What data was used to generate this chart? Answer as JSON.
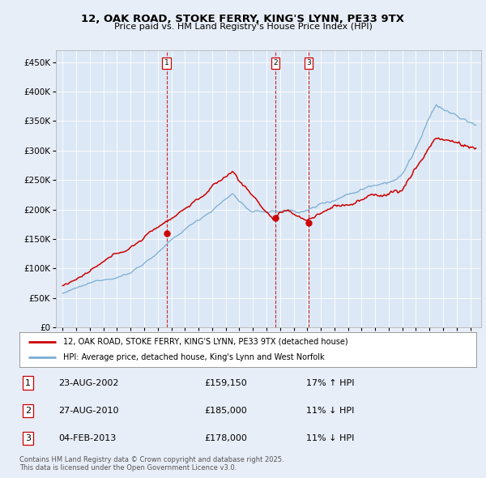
{
  "title1": "12, OAK ROAD, STOKE FERRY, KING'S LYNN, PE33 9TX",
  "title2": "Price paid vs. HM Land Registry's House Price Index (HPI)",
  "background_color": "#e8eef8",
  "plot_bg": "#dce8f5",
  "line1_color": "#cc0000",
  "line2_color": "#7aadd4",
  "sale_year_nums": [
    2002.64,
    2010.65,
    2013.09
  ],
  "sale_prices": [
    159150,
    185000,
    178000
  ],
  "sale_labels": [
    "1",
    "2",
    "3"
  ],
  "legend1": "12, OAK ROAD, STOKE FERRY, KING'S LYNN, PE33 9TX (detached house)",
  "legend2": "HPI: Average price, detached house, King's Lynn and West Norfolk",
  "table": [
    [
      "1",
      "23-AUG-2002",
      "£159,150",
      "17% ↑ HPI"
    ],
    [
      "2",
      "27-AUG-2010",
      "£185,000",
      "11% ↓ HPI"
    ],
    [
      "3",
      "04-FEB-2013",
      "£178,000",
      "11% ↓ HPI"
    ]
  ],
  "footer": "Contains HM Land Registry data © Crown copyright and database right 2025.\nThis data is licensed under the Open Government Licence v3.0.",
  "ylim": [
    0,
    470000
  ],
  "yticks": [
    0,
    50000,
    100000,
    150000,
    200000,
    250000,
    300000,
    350000,
    400000,
    450000
  ],
  "xlim_left": 1994.5,
  "xlim_right": 2025.8
}
